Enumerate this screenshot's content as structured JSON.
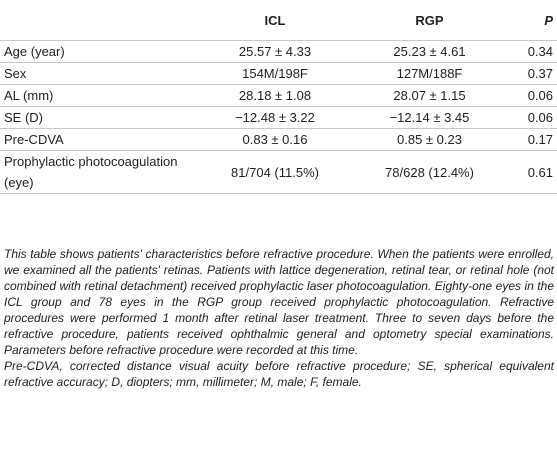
{
  "table": {
    "headers": [
      "",
      "ICL",
      "RGP",
      "P"
    ],
    "rows": [
      {
        "label": "Age (year)",
        "icl": "25.57 ± 4.33",
        "rgp": "25.23 ± 4.61",
        "p": "0.34"
      },
      {
        "label": "Sex",
        "icl": "154M/198F",
        "rgp": "127M/188F",
        "p": "0.37"
      },
      {
        "label": "AL (mm)",
        "icl": "28.18 ± 1.08",
        "rgp": "28.07 ± 1.15",
        "p": "0.06"
      },
      {
        "label": "SE (D)",
        "icl": "−12.48 ± 3.22",
        "rgp": "−12.14 ± 3.45",
        "p": "0.06"
      },
      {
        "label": "Pre-CDVA",
        "icl": "0.83 ± 0.16",
        "rgp": "0.85 ± 0.23",
        "p": "0.17"
      },
      {
        "label": "Prophylactic photocoagulation (eye)",
        "icl": "81/704 (11.5%)",
        "rgp": "78/628 (12.4%)",
        "p": "0.61"
      }
    ]
  },
  "footnote": {
    "description": "This table shows patients' characteristics before refractive procedure. When the patients were enrolled, we examined all the patients' retinas. Patients with lattice degeneration, retinal tear, or retinal hole (not combined with retinal detachment) received prophylactic laser photocoagulation. Eighty-one eyes in the ICL group and 78 eyes in the RGP group received prophylactic photocoagulation. Refractive procedures were performed 1 month after retinal laser treatment. Three to seven days before the refractive procedure, patients received ophthalmic general and optometry special examinations. Parameters before refractive procedure were recorded at this time.",
    "abbreviations": "Pre-CDVA, corrected distance visual acuity before refractive procedure; SE, spherical equivalent refractive accuracy; D, diopters; mm, millimeter; M, male; F, female."
  }
}
